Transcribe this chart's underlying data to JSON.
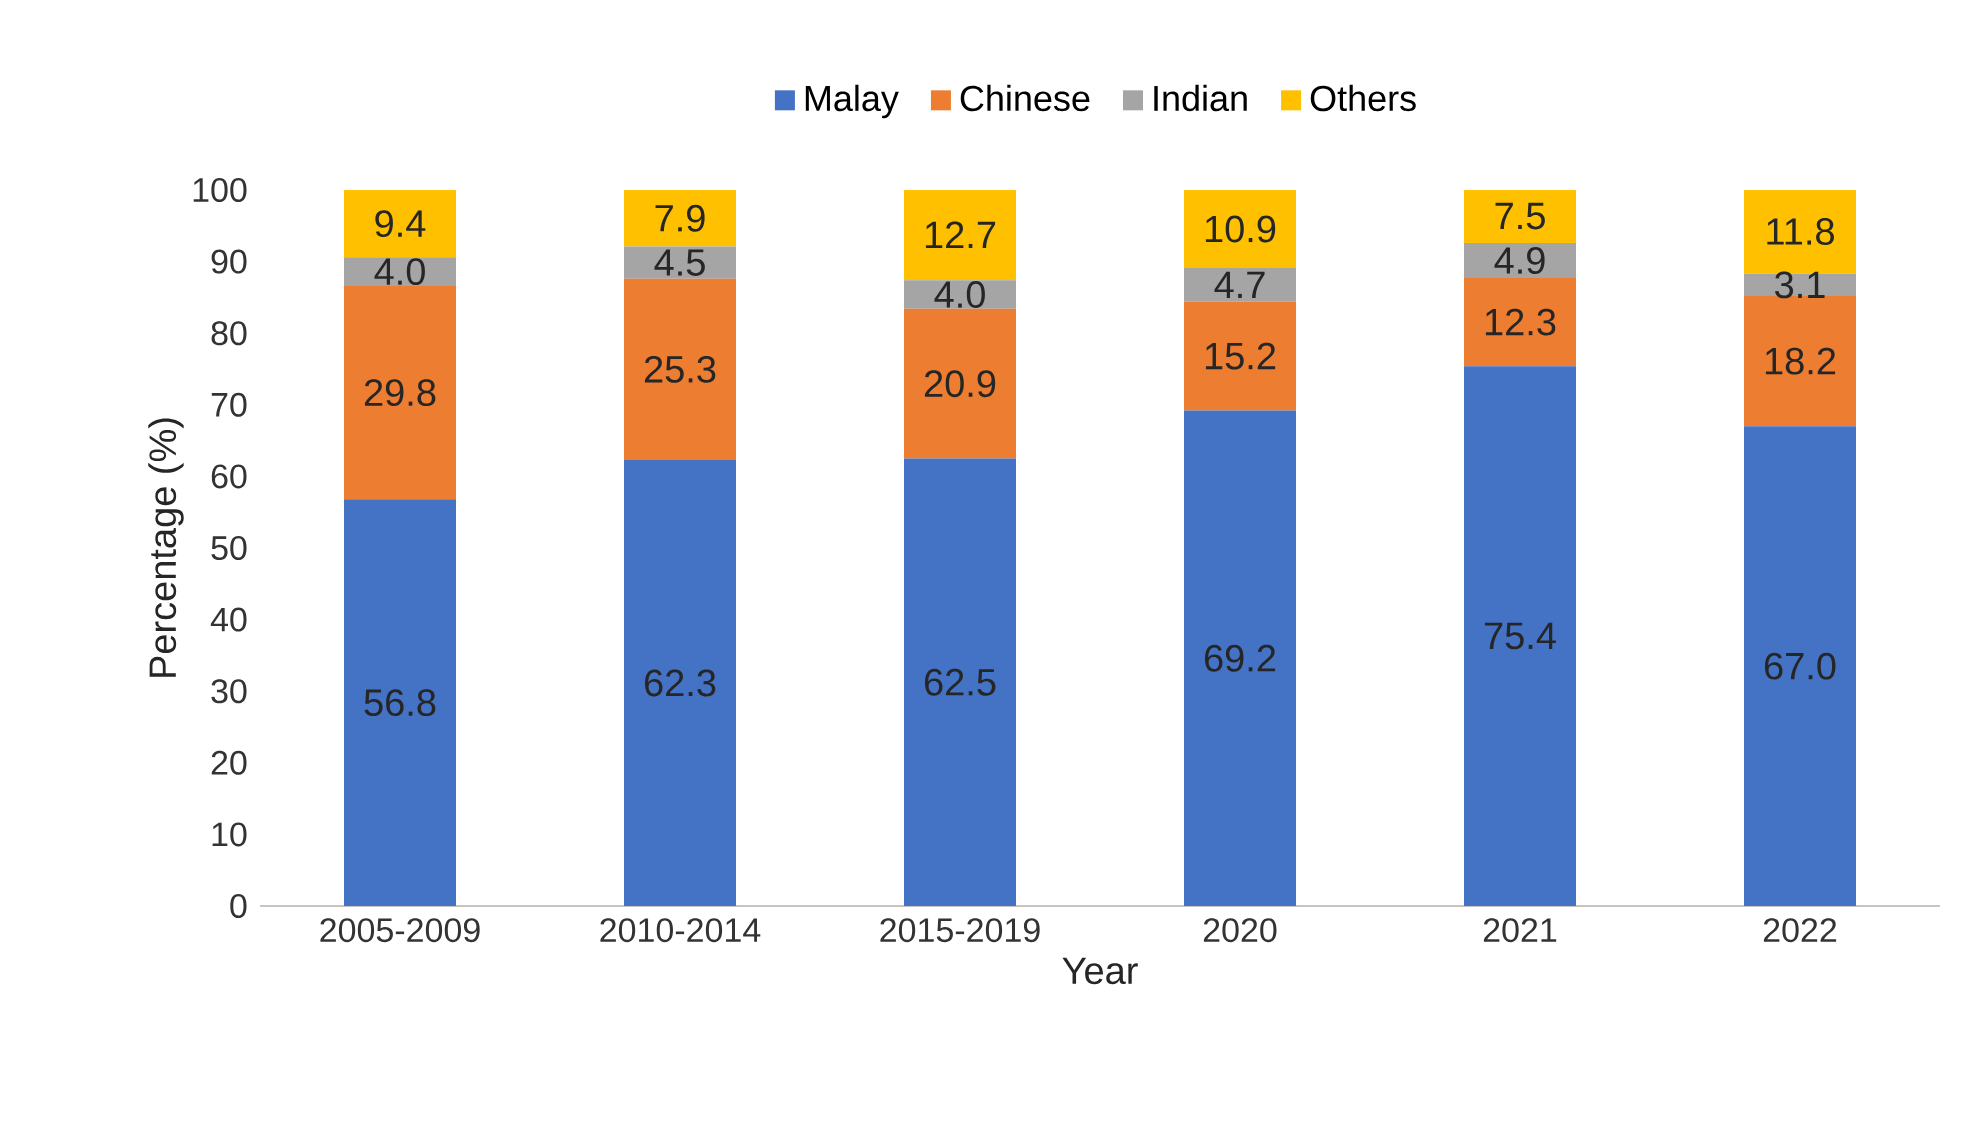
{
  "chart_data": {
    "type": "bar",
    "stacked": true,
    "xlabel": "Year",
    "ylabel": "Percentage (%)",
    "categories": [
      "2005-2009",
      "2010-2014",
      "2015-2019",
      "2020",
      "2021",
      "2022"
    ],
    "series": [
      {
        "name": "Malay",
        "color": "#4472c4",
        "values": [
          56.8,
          62.3,
          62.5,
          69.2,
          75.4,
          67.0
        ],
        "value_labels": [
          "56.8",
          "62.3",
          "62.5",
          "69.2",
          "75.4",
          "67.0"
        ]
      },
      {
        "name": "Chinese",
        "color": "#ed7d31",
        "values": [
          29.8,
          25.3,
          20.9,
          15.2,
          12.3,
          18.2
        ],
        "value_labels": [
          "29.8",
          "25.3",
          "20.9",
          "15.2",
          "12.3",
          "18.2"
        ]
      },
      {
        "name": "Indian",
        "color": "#a5a5a5",
        "values": [
          4.0,
          4.5,
          4.0,
          4.7,
          4.9,
          3.1
        ],
        "value_labels": [
          "4.0",
          "4.5",
          "4.0",
          "4.7",
          "4.9",
          "3.1"
        ]
      },
      {
        "name": "Others",
        "color": "#ffc000",
        "values": [
          9.4,
          7.9,
          12.7,
          10.9,
          7.5,
          11.8
        ],
        "value_labels": [
          "9.4",
          "7.9",
          "12.7",
          "10.9",
          "7.5",
          "11.8"
        ]
      }
    ],
    "ylim": [
      0,
      100
    ],
    "yticks": [
      0,
      10,
      20,
      30,
      40,
      50,
      60,
      70,
      80,
      90,
      100
    ],
    "legend": "top",
    "grid": false
  }
}
